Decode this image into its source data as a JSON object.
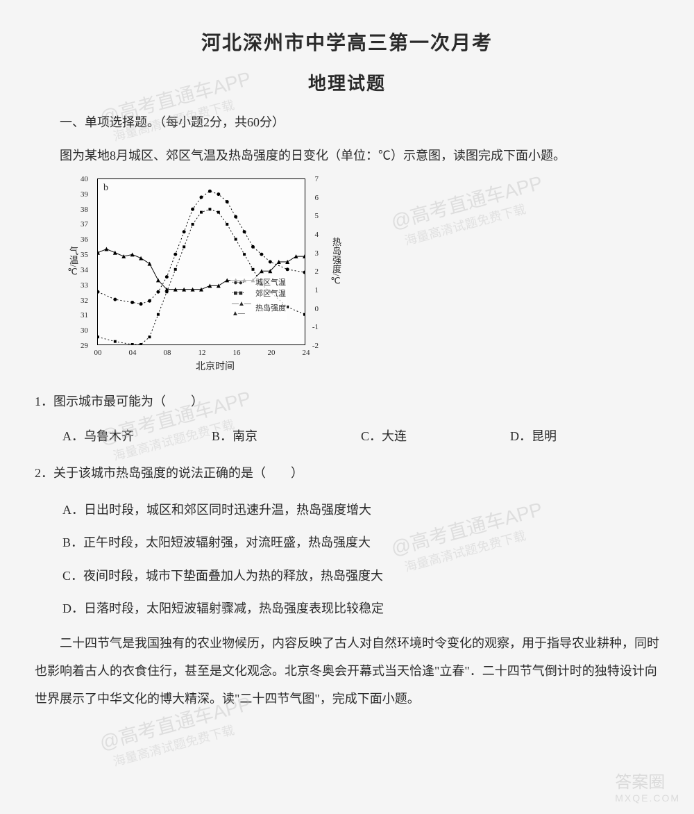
{
  "title_main": "河北深州市中学高三第一次月考",
  "title_sub": "地理试题",
  "section_header": "一、单项选择题。（每小题2分，共60分）",
  "intro1": "图为某地8月城区、郊区气温及热岛强度的日变化（单位：℃）示意图，读图完成下面小题。",
  "chart": {
    "b_label": "b",
    "ylabel_left": "气温/℃",
    "ylabel_right": "热岛强度/℃",
    "xlabel": "北京时间",
    "left_ticks": [
      "40",
      "39",
      "38",
      "37",
      "36",
      "35",
      "34",
      "33",
      "32",
      "31",
      "30",
      "29"
    ],
    "right_ticks": [
      "7",
      "6",
      "5",
      "4",
      "3",
      "2",
      "1",
      "0",
      "-1",
      "-2"
    ],
    "x_ticks": [
      "00",
      "04",
      "08",
      "12",
      "16",
      "20",
      "24"
    ],
    "legend": {
      "urban": "城区气温",
      "suburb": "郊区气温",
      "heat": "热岛强度"
    },
    "series_colors": {
      "urban": "#000000",
      "suburb": "#000000",
      "heat": "#000000"
    },
    "urban_points": [
      [
        0,
        32.5
      ],
      [
        2,
        32.0
      ],
      [
        4,
        31.8
      ],
      [
        5,
        31.7
      ],
      [
        6,
        31.9
      ],
      [
        7,
        32.5
      ],
      [
        8,
        33.5
      ],
      [
        9,
        35.0
      ],
      [
        10,
        36.5
      ],
      [
        11,
        38.0
      ],
      [
        12,
        38.8
      ],
      [
        13,
        39.2
      ],
      [
        14,
        39.0
      ],
      [
        15,
        38.5
      ],
      [
        16,
        37.5
      ],
      [
        17,
        36.5
      ],
      [
        18,
        35.5
      ],
      [
        19,
        35.0
      ],
      [
        20,
        34.5
      ],
      [
        22,
        34.0
      ],
      [
        24,
        33.8
      ]
    ],
    "suburb_points": [
      [
        0,
        29.5
      ],
      [
        2,
        29.2
      ],
      [
        4,
        29.0
      ],
      [
        5,
        29.0
      ],
      [
        6,
        29.5
      ],
      [
        7,
        31.0
      ],
      [
        8,
        32.5
      ],
      [
        9,
        34.0
      ],
      [
        10,
        35.5
      ],
      [
        11,
        37.0
      ],
      [
        12,
        37.8
      ],
      [
        13,
        38.0
      ],
      [
        14,
        37.8
      ],
      [
        15,
        37.0
      ],
      [
        16,
        36.0
      ],
      [
        17,
        35.0
      ],
      [
        18,
        34.0
      ],
      [
        19,
        33.0
      ],
      [
        20,
        32.5
      ],
      [
        22,
        31.5
      ],
      [
        24,
        31.0
      ]
    ],
    "heat_points": [
      [
        0,
        3.0
      ],
      [
        1,
        3.2
      ],
      [
        2,
        3.0
      ],
      [
        3,
        2.8
      ],
      [
        4,
        2.9
      ],
      [
        5,
        2.7
      ],
      [
        6,
        2.4
      ],
      [
        7,
        1.5
      ],
      [
        8,
        1.0
      ],
      [
        9,
        1.0
      ],
      [
        10,
        1.0
      ],
      [
        11,
        1.0
      ],
      [
        12,
        1.0
      ],
      [
        13,
        1.2
      ],
      [
        14,
        1.2
      ],
      [
        15,
        1.5
      ],
      [
        16,
        1.5
      ],
      [
        17,
        1.5
      ],
      [
        18,
        1.5
      ],
      [
        19,
        2.0
      ],
      [
        20,
        2.0
      ],
      [
        21,
        2.5
      ],
      [
        22,
        2.5
      ],
      [
        23,
        2.8
      ],
      [
        24,
        2.8
      ]
    ]
  },
  "q1": {
    "stem": "1．图示城市最可能为（　　）",
    "A": "A．乌鲁木齐",
    "B": "B．南京",
    "C": "C．大连",
    "D": "D．昆明"
  },
  "q2": {
    "stem": "2．关于该城市热岛强度的说法正确的是（　　）",
    "A": "A．日出时段，城区和郊区同时迅速升温，热岛强度增大",
    "B": "B．正午时段，太阳短波辐射强，对流旺盛，热岛强度大",
    "C": "C．夜间时段，城市下垫面叠加人为热的释放，热岛强度大",
    "D": "D．日落时段，太阳短波辐射骤减，热岛强度表现比较稳定"
  },
  "passage2": "二十四节气是我国独有的农业物候历，内容反映了古人对自然环境时令变化的观察，用于指导农业耕种，同时也影响着古人的衣食住行，甚至是文化观念。北京冬奥会开幕式当天恰逢\"立春\"．二十四节气倒计时的独特设计向世界展示了中华文化的博大精深。读\"二十四节气图\"，完成下面小题。",
  "watermarks": {
    "main": "@高考直通车APP",
    "sub": "海量高清试题免费下载"
  },
  "footer": {
    "logo": "答案圈",
    "url": "MXQE.COM"
  }
}
